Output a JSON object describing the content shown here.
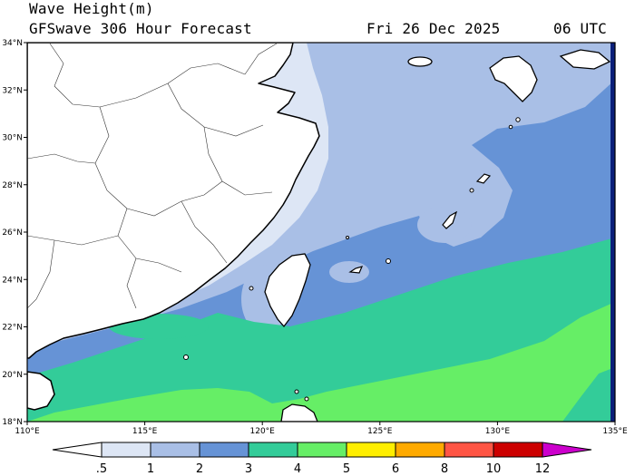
{
  "title": {
    "line1": "Wave Height(m)",
    "line2": "GFSwave 306 Hour Forecast",
    "date": "Fri 26 Dec 2025",
    "time": "06 UTC"
  },
  "map": {
    "lon_range": [
      110,
      135
    ],
    "lat_range": [
      18,
      34
    ],
    "lon_ticks": [
      "110°E",
      "115°E",
      "120°E",
      "125°E",
      "130°E",
      "135°E"
    ],
    "lat_ticks": [
      "18°N",
      "20°N",
      "22°N",
      "24°N",
      "26°N",
      "28°N",
      "30°N",
      "32°N",
      "34°N"
    ],
    "land_color": "#ffffff",
    "boundary_color": "#000000"
  },
  "colorbar": {
    "labels": [
      ".5",
      "1",
      "2",
      "3",
      "4",
      "5",
      "6",
      "8",
      "10",
      "12"
    ],
    "colors": [
      "#ffffff",
      "#dde6f5",
      "#a9bfe6",
      "#6693d6",
      "#33cc99",
      "#66ee66",
      "#ffee00",
      "#ffaa00",
      "#ff5544",
      "#cc0000",
      "#cc00cc"
    ]
  }
}
